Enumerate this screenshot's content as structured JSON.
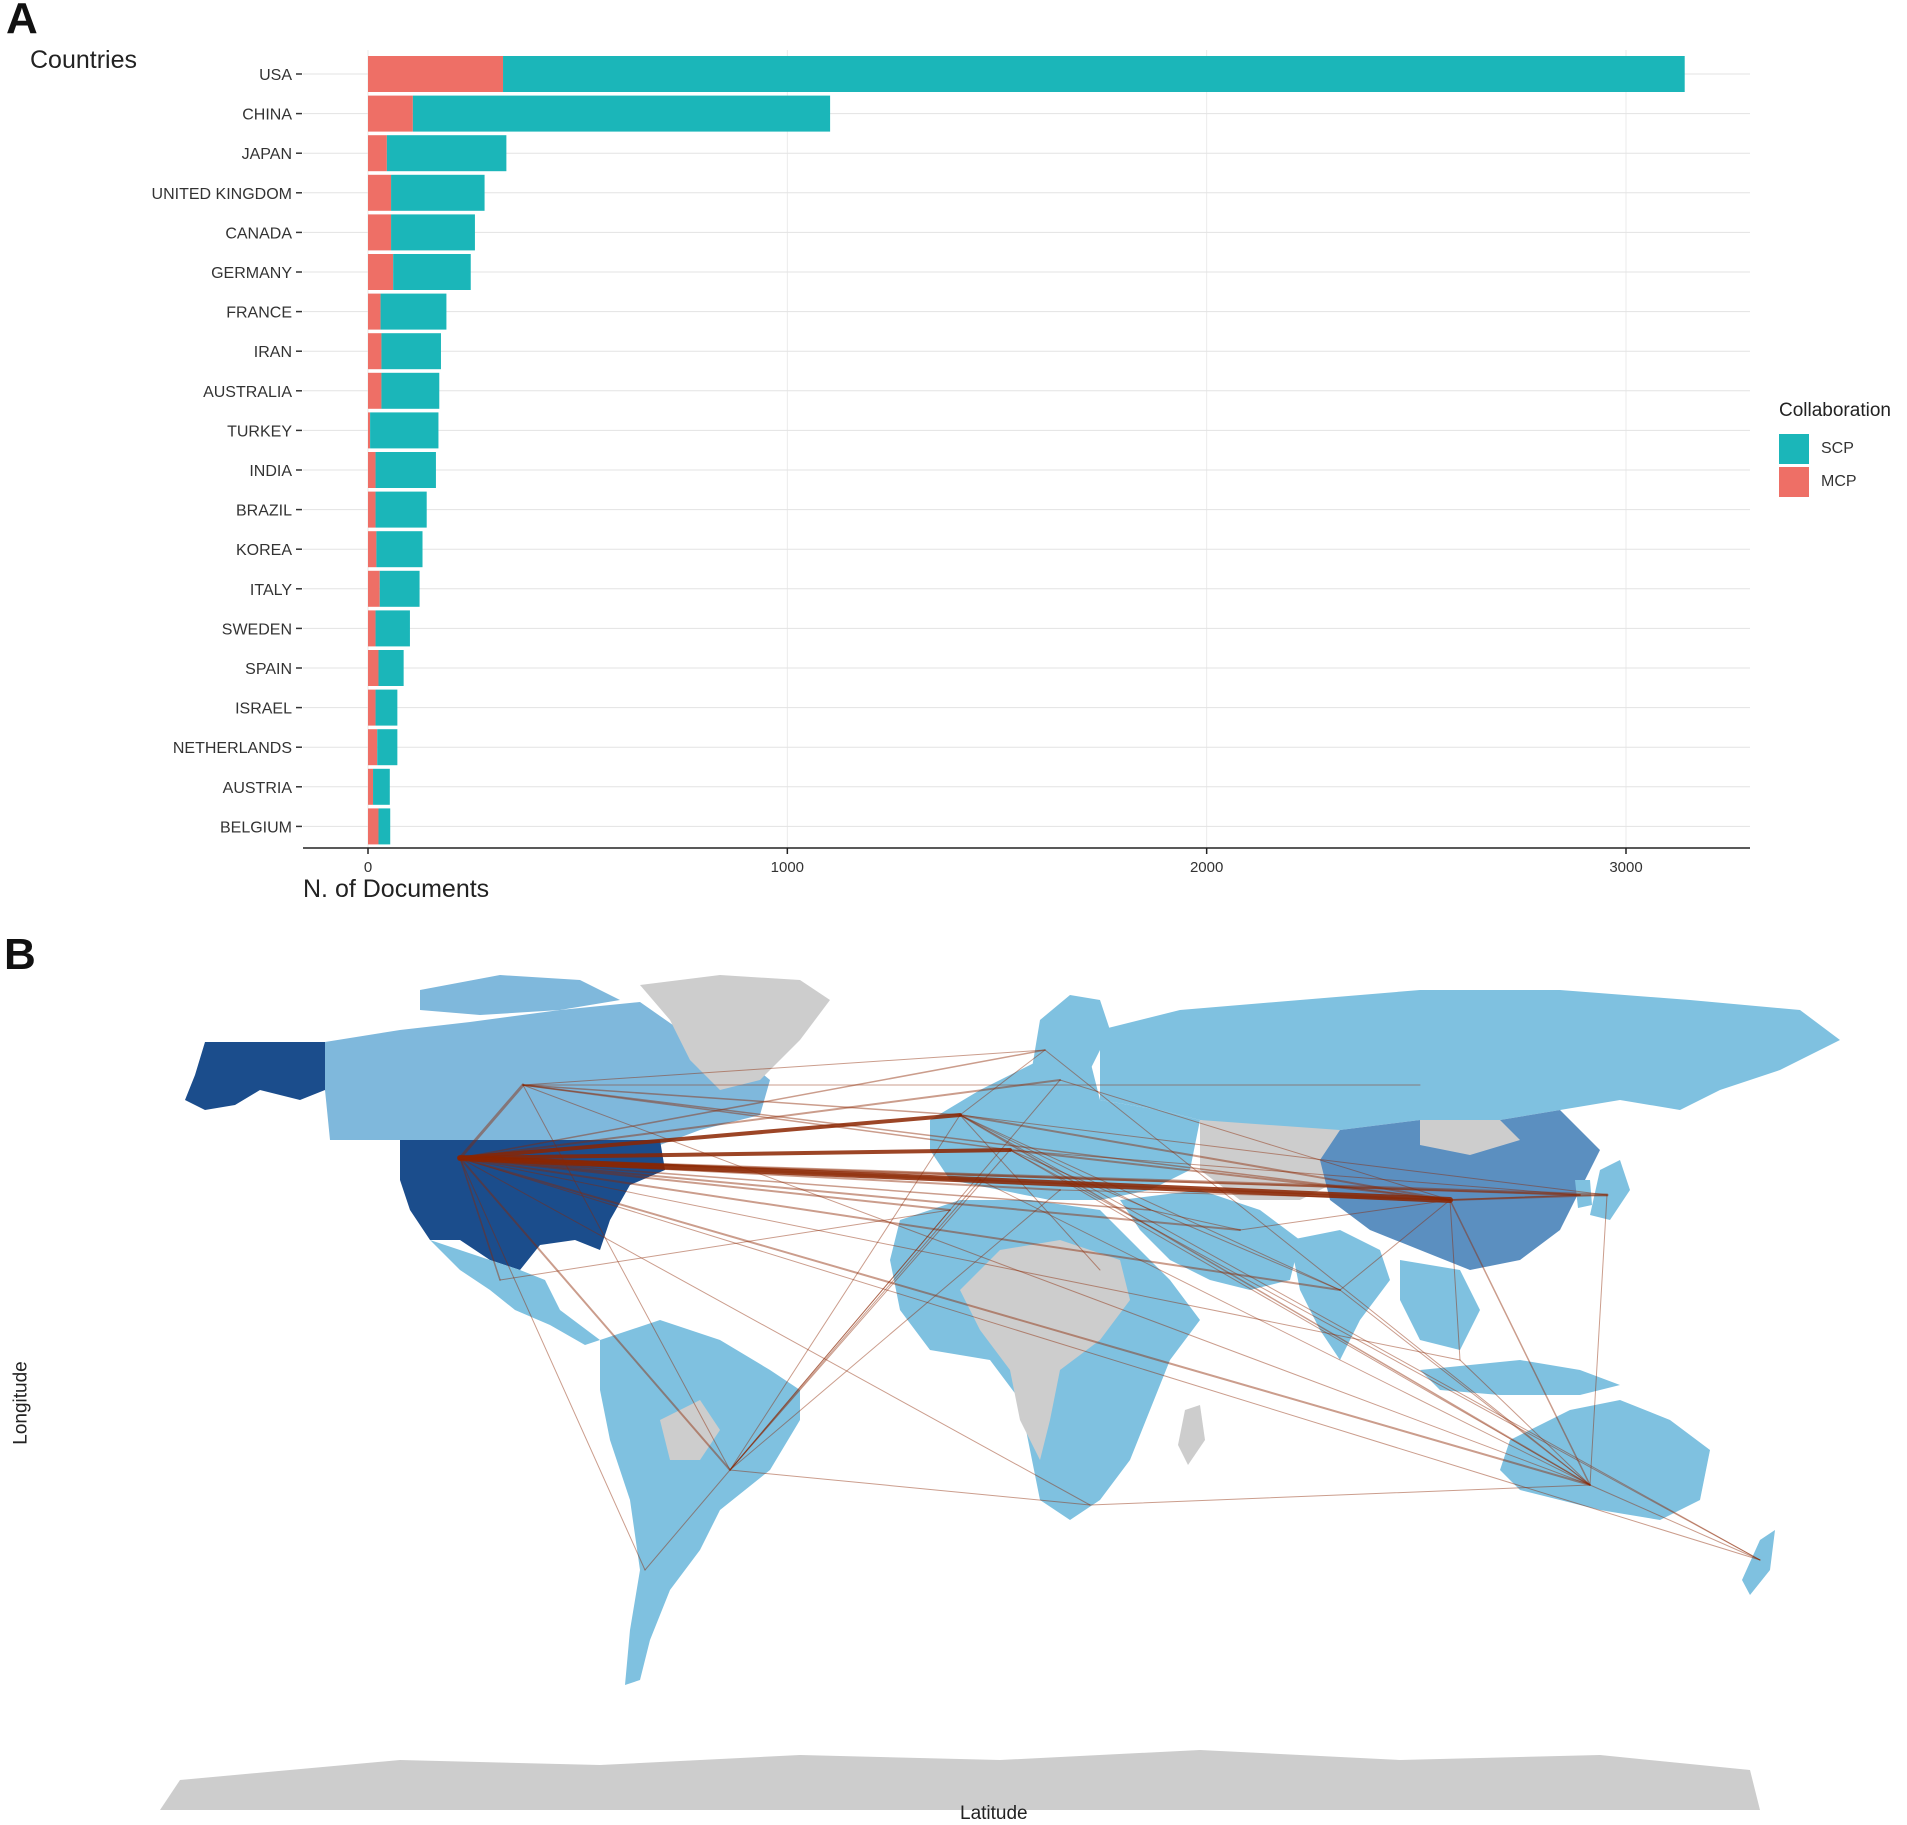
{
  "panel_a": {
    "letter": "A",
    "legend": {
      "title": "Collaboration",
      "items": [
        {
          "label": "SCP",
          "color": "#1bb6b9"
        },
        {
          "label": "MCP",
          "color": "#ee6f66"
        }
      ]
    }
  },
  "panel_b": {
    "letter": "B",
    "xlabel": "Latitude",
    "ylabel": "Longitude",
    "colors": {
      "ocean": "#ffffff",
      "no_data": "#cdcdcd",
      "low": "#7fc1e0",
      "mid": "#5b8fc0",
      "high": "#1b4d8c",
      "links": "#8b2500"
    }
  },
  "chart_data": [
    {
      "type": "bar",
      "orientation": "horizontal",
      "stacked": true,
      "ylabel": "Countries",
      "xlabel": "N. of Documents",
      "categories": [
        "USA",
        "CHINA",
        "JAPAN",
        "UNITED KINGDOM",
        "CANADA",
        "GERMANY",
        "FRANCE",
        "IRAN",
        "AUSTRALIA",
        "TURKEY",
        "INDIA",
        "BRAZIL",
        "KOREA",
        "ITALY",
        "SWEDEN",
        "SPAIN",
        "ISRAEL",
        "NETHERLANDS",
        "AUSTRIA",
        "BELGIUM"
      ],
      "series": [
        {
          "name": "MCP",
          "values": [
            322,
            107,
            45,
            55,
            55,
            60,
            30,
            32,
            32,
            5,
            18,
            18,
            20,
            28,
            18,
            25,
            18,
            22,
            12,
            25
          ]
        },
        {
          "name": "SCP",
          "values": [
            2818,
            995,
            285,
            223,
            200,
            185,
            157,
            142,
            138,
            163,
            144,
            122,
            110,
            95,
            82,
            60,
            52,
            48,
            40,
            28
          ]
        }
      ],
      "xlim": [
        -160,
        3300
      ],
      "xticks": [
        0,
        1000,
        2000,
        3000
      ],
      "grid": true,
      "legend_position": "right"
    }
  ]
}
